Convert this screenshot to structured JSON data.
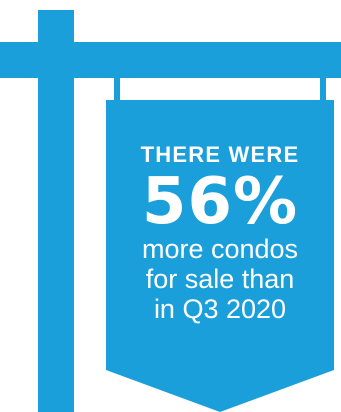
{
  "colors": {
    "sign_blue": "#1a9fdb",
    "text": "#ffffff",
    "background": "#ffffff"
  },
  "sign": {
    "headline": "THERE WERE",
    "stat": "56%",
    "line1": "more condos",
    "line2": "for sale than",
    "line3": "in Q3 2020"
  }
}
